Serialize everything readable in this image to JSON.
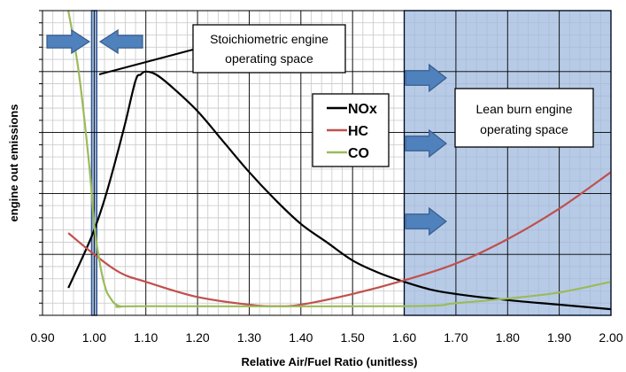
{
  "chart_data": {
    "type": "line",
    "title": "",
    "xlabel": "Relative Air/Fuel Ratio (unitless)",
    "ylabel": "engine out emissions",
    "xlim": [
      0.9,
      2.0
    ],
    "ylim": [
      0,
      100
    ],
    "x_ticks": [
      "0.90",
      "1.00",
      "1.10",
      "1.20",
      "1.30",
      "1.40",
      "1.50",
      "1.60",
      "1.70",
      "1.80",
      "1.90",
      "2.00"
    ],
    "grid": true,
    "legend_position": "center",
    "series": [
      {
        "name": "NOx",
        "color": "#000000",
        "x": [
          0.95,
          0.98,
          1.0,
          1.02,
          1.04,
          1.06,
          1.08,
          1.09,
          1.1,
          1.12,
          1.15,
          1.2,
          1.25,
          1.3,
          1.35,
          1.4,
          1.45,
          1.5,
          1.55,
          1.6,
          1.65,
          1.7,
          1.8,
          1.9,
          2.0
        ],
        "y": [
          9,
          20,
          28,
          38,
          50,
          63,
          77,
          79,
          80,
          79,
          75,
          67,
          57,
          47,
          38,
          30,
          24,
          18,
          14,
          11,
          8.5,
          7,
          5,
          3.5,
          2
        ]
      },
      {
        "name": "HC",
        "color": "#c0504d",
        "x": [
          0.95,
          1.0,
          1.05,
          1.1,
          1.2,
          1.3,
          1.35,
          1.4,
          1.5,
          1.6,
          1.7,
          1.8,
          1.9,
          2.0
        ],
        "y": [
          27,
          20,
          14,
          11,
          6,
          3.5,
          3,
          3.5,
          7,
          11.5,
          17,
          25,
          35,
          47
        ]
      },
      {
        "name": "CO",
        "color": "#9bbb59",
        "x": [
          0.95,
          0.97,
          0.99,
          1.0,
          1.01,
          1.02,
          1.03,
          1.05,
          1.1,
          1.6,
          1.7,
          1.8,
          1.9,
          2.0
        ],
        "y": [
          100,
          80,
          50,
          30,
          18,
          10,
          6,
          3,
          3,
          3,
          4,
          5.5,
          7.5,
          11
        ]
      }
    ],
    "regions": [
      {
        "label": "Stoichiometric engine operating space",
        "x_start": 0.995,
        "x_end": 1.005
      },
      {
        "label": "Lean burn engine operating space",
        "x_start": 1.6,
        "x_end": 2.0
      }
    ],
    "annotations": {
      "stoich_line1": "Stoichiometric engine",
      "stoich_line2": "operating space",
      "lean_line1": "Lean burn engine",
      "lean_line2": "operating space"
    },
    "colors": {
      "region_fill": "#9fbadf",
      "region_border": "#2f5597",
      "arrow_fill": "#4f81bd",
      "arrow_stroke": "#385d8a"
    }
  }
}
